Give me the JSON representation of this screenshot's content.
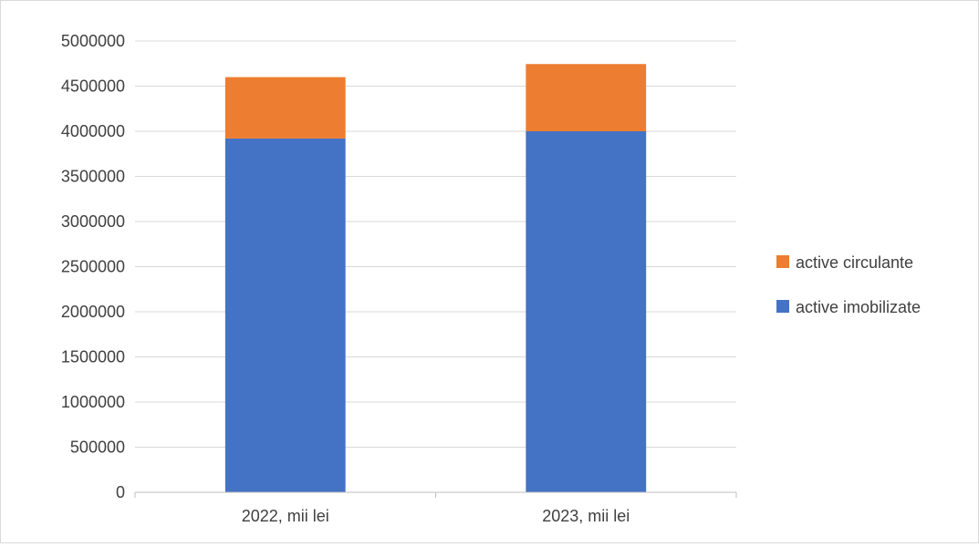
{
  "chart_data": {
    "type": "bar",
    "stacked": true,
    "categories": [
      "2022, mii lei",
      "2023, mii lei"
    ],
    "series": [
      {
        "name": "active imobilizate",
        "color": "#4472c4",
        "values": [
          3920000,
          4000000
        ]
      },
      {
        "name": "active circulante",
        "color": "#ed7d31",
        "values": [
          680000,
          745000
        ]
      }
    ],
    "ylim": [
      0,
      5000000
    ],
    "yticks": [
      0,
      500000,
      1000000,
      1500000,
      2000000,
      2500000,
      3000000,
      3500000,
      4000000,
      4500000,
      5000000
    ],
    "grid": true,
    "legend_position": "right",
    "legend_order": [
      "active circulante",
      "active imobilizate"
    ]
  }
}
